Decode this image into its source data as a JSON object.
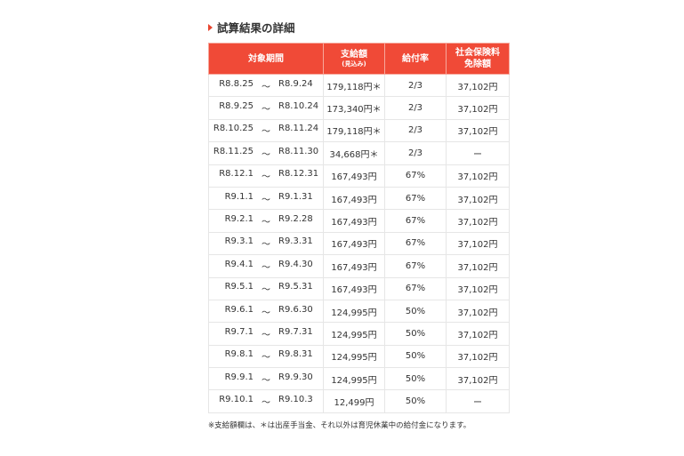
{
  "title": "試算結果の詳細",
  "accent": "#f04a37",
  "headers": {
    "period": "対象期間",
    "amount": "支給額",
    "amount_sub": "(見込み)",
    "rate": "給付率",
    "insurance_line1": "社会保険料",
    "insurance_line2": "免除額"
  },
  "separator": "〜",
  "rows": [
    {
      "from": "R8.8.25",
      "to": "R8.9.24",
      "amount": "179,118円＊",
      "rate": "2/3",
      "insurance": "37,102円"
    },
    {
      "from": "R8.9.25",
      "to": "R8.10.24",
      "amount": "173,340円＊",
      "rate": "2/3",
      "insurance": "37,102円"
    },
    {
      "from": "R8.10.25",
      "to": "R8.11.24",
      "amount": "179,118円＊",
      "rate": "2/3",
      "insurance": "37,102円"
    },
    {
      "from": "R8.11.25",
      "to": "R8.11.30",
      "amount": "34,668円＊",
      "rate": "2/3",
      "insurance": "ー"
    },
    {
      "from": "R8.12.1",
      "to": "R8.12.31",
      "amount": "167,493円",
      "rate": "67%",
      "insurance": "37,102円"
    },
    {
      "from": "R9.1.1",
      "to": "R9.1.31",
      "amount": "167,493円",
      "rate": "67%",
      "insurance": "37,102円"
    },
    {
      "from": "R9.2.1",
      "to": "R9.2.28",
      "amount": "167,493円",
      "rate": "67%",
      "insurance": "37,102円"
    },
    {
      "from": "R9.3.1",
      "to": "R9.3.31",
      "amount": "167,493円",
      "rate": "67%",
      "insurance": "37,102円"
    },
    {
      "from": "R9.4.1",
      "to": "R9.4.30",
      "amount": "167,493円",
      "rate": "67%",
      "insurance": "37,102円"
    },
    {
      "from": "R9.5.1",
      "to": "R9.5.31",
      "amount": "167,493円",
      "rate": "67%",
      "insurance": "37,102円"
    },
    {
      "from": "R9.6.1",
      "to": "R9.6.30",
      "amount": "124,995円",
      "rate": "50%",
      "insurance": "37,102円"
    },
    {
      "from": "R9.7.1",
      "to": "R9.7.31",
      "amount": "124,995円",
      "rate": "50%",
      "insurance": "37,102円"
    },
    {
      "from": "R9.8.1",
      "to": "R9.8.31",
      "amount": "124,995円",
      "rate": "50%",
      "insurance": "37,102円"
    },
    {
      "from": "R9.9.1",
      "to": "R9.9.30",
      "amount": "124,995円",
      "rate": "50%",
      "insurance": "37,102円"
    },
    {
      "from": "R9.10.1",
      "to": "R9.10.3",
      "amount": "12,499円",
      "rate": "50%",
      "insurance": "ー"
    }
  ],
  "note": "※支給額欄は、＊は出産手当金、それ以外は育児休業中の給付金になります。"
}
